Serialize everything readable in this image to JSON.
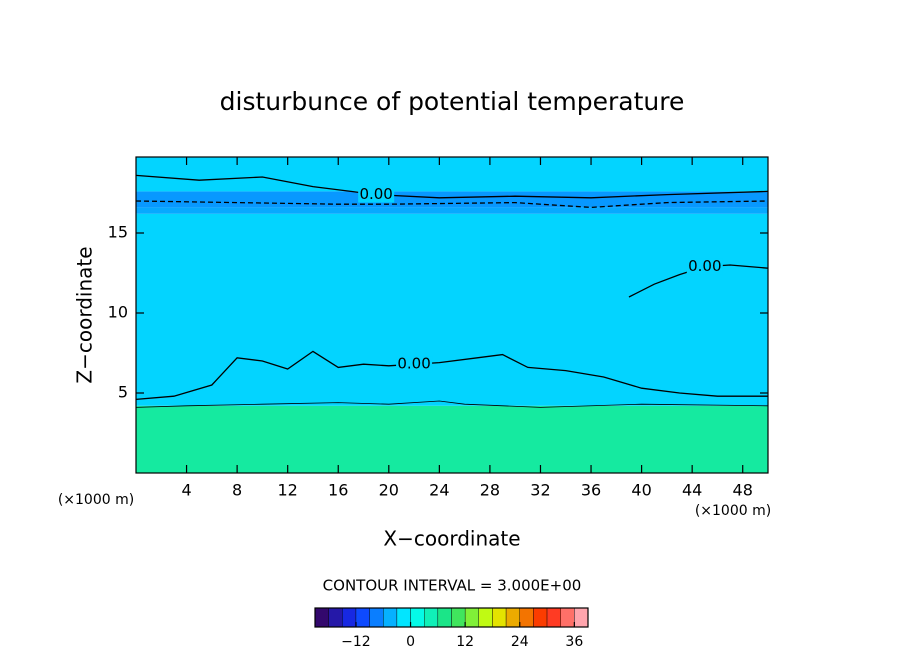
{
  "chart_data": {
    "type": "contour",
    "title": "disturbunce of potential temperature",
    "x_label": "X−coordinate",
    "y_label": "Z−coordinate",
    "x_unit": "(×1000 m)",
    "y_unit": "(×1000 m)",
    "xlim": [
      0,
      50
    ],
    "ylim": [
      0,
      19.75
    ],
    "xticks": [
      4,
      8,
      12,
      16,
      20,
      24,
      28,
      32,
      36,
      40,
      44,
      48
    ],
    "yticks": [
      5,
      10,
      15
    ],
    "field": {
      "z_edges": [
        0,
        4.2,
        16.2,
        16.6,
        17.6,
        19.75
      ],
      "values": [
        6,
        -2.5,
        -5,
        -6,
        -2.5
      ]
    },
    "contours": [
      {
        "level": 0,
        "label": "0.00",
        "label_at": [
          22,
          6.8
        ],
        "dashed": false,
        "points": [
          [
            0,
            4.6
          ],
          [
            3,
            4.8
          ],
          [
            6,
            5.5
          ],
          [
            8,
            7.2
          ],
          [
            10,
            7.0
          ],
          [
            12,
            6.5
          ],
          [
            14,
            7.6
          ],
          [
            16,
            6.6
          ],
          [
            18,
            6.8
          ],
          [
            20,
            6.7
          ],
          [
            24,
            6.9
          ],
          [
            27,
            7.2
          ],
          [
            29,
            7.4
          ],
          [
            31,
            6.6
          ],
          [
            34,
            6.4
          ],
          [
            37,
            6.0
          ],
          [
            40,
            5.3
          ],
          [
            43,
            5.0
          ],
          [
            46,
            4.8
          ],
          [
            50,
            4.8
          ]
        ]
      },
      {
        "level": 0,
        "label": "0.00",
        "label_at": [
          19,
          17.4
        ],
        "dashed": false,
        "points": [
          [
            0,
            18.6
          ],
          [
            5,
            18.3
          ],
          [
            10,
            18.5
          ],
          [
            14,
            17.9
          ],
          [
            17,
            17.6
          ],
          [
            19,
            17.4
          ],
          [
            24,
            17.2
          ],
          [
            30,
            17.3
          ],
          [
            36,
            17.2
          ],
          [
            42,
            17.4
          ],
          [
            50,
            17.6
          ]
        ]
      },
      {
        "level": 0,
        "label": "0.00",
        "label_at": [
          45,
          12.9
        ],
        "dashed": false,
        "points": [
          [
            39,
            11.0
          ],
          [
            41,
            11.8
          ],
          [
            43,
            12.4
          ],
          [
            45,
            12.9
          ],
          [
            47,
            13.0
          ],
          [
            50,
            12.8
          ]
        ]
      },
      {
        "level": -3,
        "dashed": true,
        "points": [
          [
            0,
            17.0
          ],
          [
            8,
            16.9
          ],
          [
            16,
            16.8
          ],
          [
            20,
            16.8
          ],
          [
            30,
            16.9
          ],
          [
            36,
            16.6
          ],
          [
            42,
            16.9
          ],
          [
            50,
            17.0
          ]
        ]
      },
      {
        "level": 3,
        "dashed": false,
        "points": [
          [
            0,
            4.1
          ],
          [
            4,
            4.2
          ],
          [
            10,
            4.3
          ],
          [
            16,
            4.4
          ],
          [
            20,
            4.3
          ],
          [
            24,
            4.5
          ],
          [
            26,
            4.3
          ],
          [
            32,
            4.1
          ],
          [
            40,
            4.3
          ],
          [
            50,
            4.2
          ]
        ]
      }
    ],
    "contour_interval_label": "CONTOUR INTERVAL = 3.000E+00",
    "colorbar": {
      "clim": [
        -21,
        39
      ],
      "interval": 3,
      "ticks": [
        {
          "value": -12,
          "label": "−12"
        },
        0,
        12,
        24,
        36
      ],
      "colormap": [
        [
          0,
          "#3a0050"
        ],
        [
          0.15,
          "#1030ff"
        ],
        [
          0.35,
          "#00ffff"
        ],
        [
          0.5,
          "#20e070"
        ],
        [
          0.65,
          "#e0ff00"
        ],
        [
          0.85,
          "#ff2000"
        ],
        [
          1,
          "#ffc0d0"
        ]
      ]
    }
  }
}
